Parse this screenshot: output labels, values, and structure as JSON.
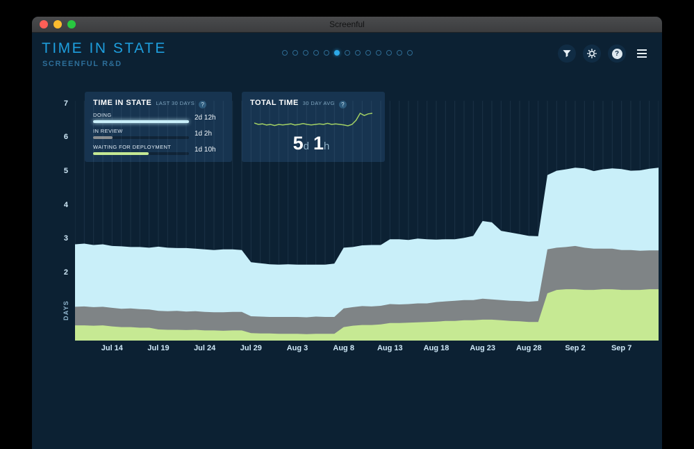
{
  "colors": {
    "background": "#0c2133",
    "card": "#173450",
    "accent": "#1e9edd"
  },
  "window_chrome": {
    "title": "Screenful",
    "traffic_lights": [
      "#ff5f57",
      "#febc2e",
      "#28c840"
    ]
  },
  "header": {
    "title": "TIME IN STATE",
    "subtitle": "SCREENFUL R&D",
    "pagination": {
      "total": 13,
      "active_index": 5
    }
  },
  "toolbar": {
    "buttons": [
      {
        "icon": "filter-icon"
      },
      {
        "icon": "settings-icon"
      },
      {
        "icon": "help-icon",
        "glyph": "?"
      },
      {
        "icon": "menu-icon"
      }
    ]
  },
  "cards": {
    "time_in_state": {
      "title": "TIME IN STATE",
      "subtitle": "LAST 30 DAYS",
      "help_icon": "?",
      "rows": [
        {
          "label": "DOING",
          "value": "2d 12h",
          "color": "#c9eff9",
          "pct": 100,
          "glow": true
        },
        {
          "label": "IN REVIEW",
          "value": "1d 2h",
          "color": "#8a8d8f",
          "pct": 20,
          "glow": false
        },
        {
          "label": "WAITING FOR DEPLOYMENT",
          "value": "1d 10h",
          "color": "#c6e993",
          "pct": 58,
          "glow": false
        }
      ]
    },
    "total_time": {
      "title": "TOTAL TIME",
      "subtitle": "30 DAY AVG",
      "help_icon": "?",
      "value": "5d 1h",
      "value_parts": [
        {
          "num": "5",
          "unit": "d"
        },
        {
          "num": "1",
          "unit": "h"
        }
      ],
      "sparkline_color": "#a3d163",
      "sparkline": [
        4.95,
        4.9,
        4.92,
        4.88,
        4.9,
        4.86,
        4.9,
        4.88,
        4.9,
        4.92,
        4.88,
        4.9,
        4.93,
        4.9,
        4.88,
        4.9,
        4.92,
        4.9,
        4.94,
        4.9,
        4.92,
        4.9,
        4.88,
        4.85,
        4.9,
        5.05,
        5.3,
        5.22,
        5.28,
        5.3
      ]
    }
  },
  "chart_data": {
    "type": "area",
    "stacked": true,
    "title": "TIME IN STATE",
    "ylabel": "DAYS",
    "ylim": [
      0,
      7.1
    ],
    "grid": "vertical-daily",
    "y_ticks": [
      2,
      3,
      4,
      5,
      6,
      7
    ],
    "x_ticks": [
      {
        "index": 4,
        "label": "Jul 14"
      },
      {
        "index": 9,
        "label": "Jul 19"
      },
      {
        "index": 14,
        "label": "Jul 24"
      },
      {
        "index": 19,
        "label": "Jul 29"
      },
      {
        "index": 24,
        "label": "Aug 3"
      },
      {
        "index": 29,
        "label": "Aug 8"
      },
      {
        "index": 34,
        "label": "Aug 13"
      },
      {
        "index": 39,
        "label": "Aug 18"
      },
      {
        "index": 44,
        "label": "Aug 23"
      },
      {
        "index": 49,
        "label": "Aug 28"
      },
      {
        "index": 54,
        "label": "Sep 2"
      },
      {
        "index": 59,
        "label": "Sep 7"
      }
    ],
    "series": [
      {
        "name": "Waiting for deployment",
        "color": "#c6e993",
        "values": [
          0.45,
          0.45,
          0.44,
          0.45,
          0.42,
          0.4,
          0.4,
          0.38,
          0.38,
          0.33,
          0.32,
          0.32,
          0.31,
          0.32,
          0.3,
          0.3,
          0.29,
          0.3,
          0.3,
          0.22,
          0.21,
          0.21,
          0.2,
          0.2,
          0.2,
          0.19,
          0.2,
          0.2,
          0.2,
          0.4,
          0.44,
          0.46,
          0.46,
          0.48,
          0.52,
          0.52,
          0.53,
          0.54,
          0.55,
          0.56,
          0.58,
          0.58,
          0.6,
          0.6,
          0.62,
          0.62,
          0.6,
          0.58,
          0.57,
          0.55,
          0.55,
          1.4,
          1.5,
          1.52,
          1.52,
          1.5,
          1.5,
          1.52,
          1.52,
          1.5,
          1.5,
          1.5,
          1.52,
          1.52
        ]
      },
      {
        "name": "In review",
        "color": "#7f8486",
        "values": [
          0.55,
          0.56,
          0.55,
          0.55,
          0.55,
          0.54,
          0.55,
          0.55,
          0.54,
          0.55,
          0.55,
          0.56,
          0.55,
          0.55,
          0.55,
          0.54,
          0.55,
          0.55,
          0.55,
          0.5,
          0.5,
          0.49,
          0.5,
          0.5,
          0.5,
          0.5,
          0.51,
          0.5,
          0.5,
          0.55,
          0.55,
          0.56,
          0.55,
          0.55,
          0.56,
          0.55,
          0.55,
          0.56,
          0.55,
          0.58,
          0.58,
          0.6,
          0.6,
          0.6,
          0.62,
          0.6,
          0.6,
          0.6,
          0.6,
          0.6,
          0.62,
          1.3,
          1.25,
          1.25,
          1.28,
          1.25,
          1.22,
          1.2,
          1.2,
          1.18,
          1.18,
          1.16,
          1.15,
          1.15
        ]
      },
      {
        "name": "Doing",
        "color": "#c9eff9",
        "values": [
          1.85,
          1.86,
          1.84,
          1.85,
          1.83,
          1.85,
          1.82,
          1.84,
          1.83,
          1.9,
          1.88,
          1.86,
          1.88,
          1.85,
          1.85,
          1.84,
          1.86,
          1.85,
          1.83,
          1.6,
          1.58,
          1.56,
          1.55,
          1.56,
          1.55,
          1.56,
          1.54,
          1.55,
          1.58,
          1.8,
          1.78,
          1.8,
          1.82,
          1.8,
          1.92,
          1.93,
          1.9,
          1.92,
          1.9,
          1.85,
          1.84,
          1.82,
          1.84,
          1.9,
          2.3,
          2.28,
          2.05,
          2.02,
          1.98,
          1.95,
          1.92,
          2.2,
          2.28,
          2.3,
          2.32,
          2.35,
          2.3,
          2.35,
          2.38,
          2.4,
          2.35,
          2.38,
          2.42,
          2.45
        ]
      }
    ]
  }
}
